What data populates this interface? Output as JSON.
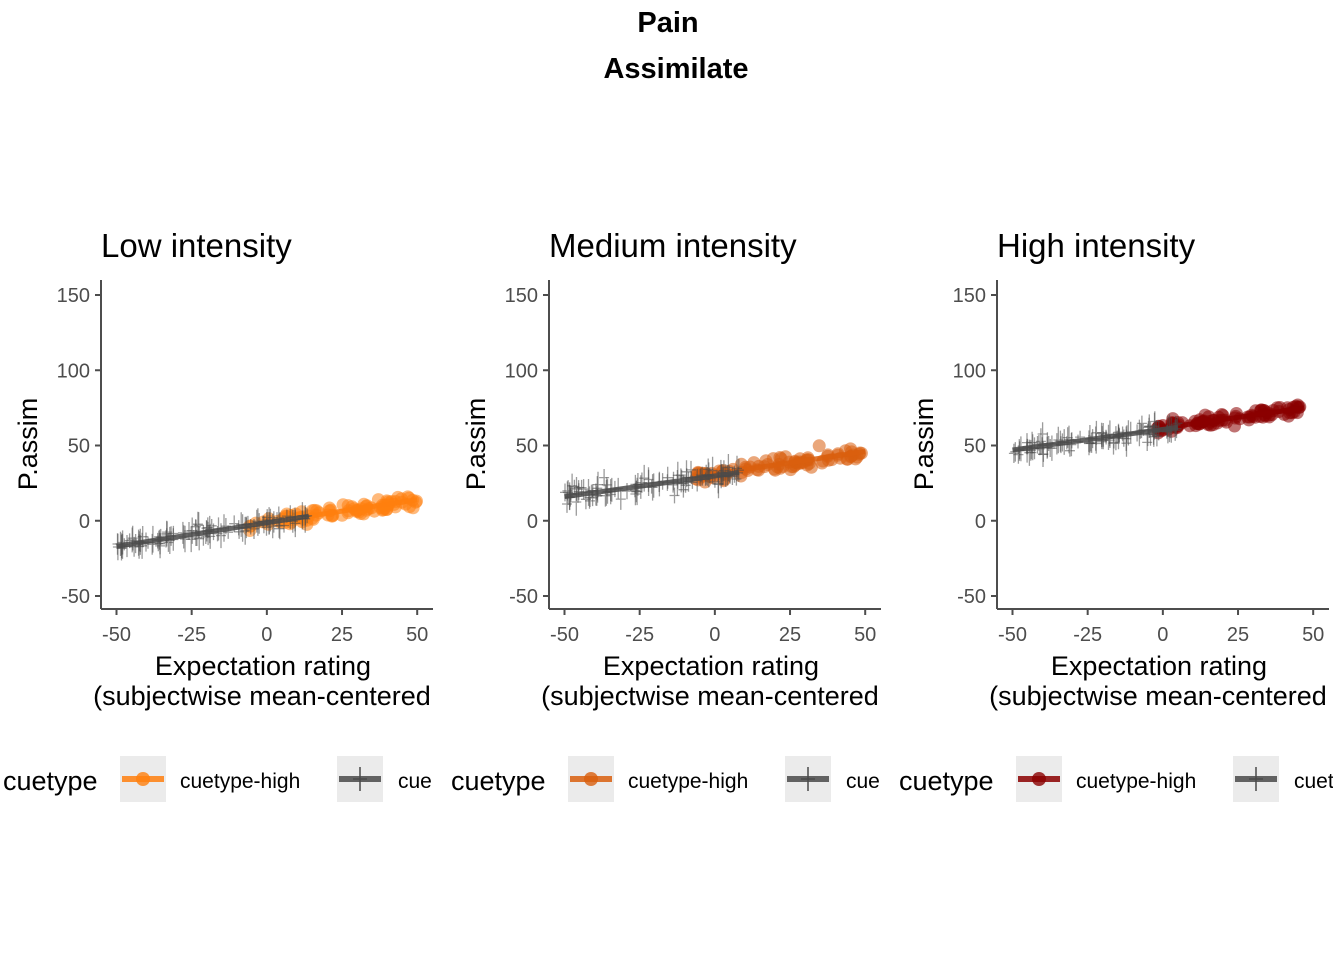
{
  "figure": {
    "title": "Pain",
    "subtitle": "Assimilate"
  },
  "chart_data": [
    {
      "type": "scatter",
      "title": "Low intensity",
      "xlabel": "Expectation rating\n(subjectwise mean-centered",
      "ylabel": "P.assim",
      "xlim": [
        -50,
        50
      ],
      "ylim": [
        -50,
        150
      ],
      "xticks": [
        -50,
        -25,
        0,
        25,
        50
      ],
      "yticks": [
        -50,
        0,
        50,
        100,
        150
      ],
      "grid": false,
      "legend": {
        "title": "cuetype",
        "position": "bottom",
        "entries": [
          "cuetype-high",
          "cue"
        ]
      },
      "series": [
        {
          "name": "cuetype-high",
          "color": "#ff7f0e",
          "marker": "circle",
          "x_range": [
            -6,
            50
          ],
          "fit": [
            [
              -6,
              -3
            ],
            [
              50,
              14
            ]
          ],
          "noise": 2.2,
          "n": 95
        },
        {
          "name": "cuetype-low",
          "color": "#4a4a4a",
          "marker": "plus",
          "x_range": [
            -50,
            14
          ],
          "fit": [
            [
              -50,
              -17
            ],
            [
              14,
              3
            ]
          ],
          "noise": 2.5,
          "n": 110
        }
      ]
    },
    {
      "type": "scatter",
      "title": "Medium intensity",
      "xlabel": "Expectation rating\n(subjectwise mean-centered",
      "ylabel": "P.assim",
      "xlim": [
        -50,
        50
      ],
      "ylim": [
        -50,
        150
      ],
      "xticks": [
        -50,
        -25,
        0,
        25,
        50
      ],
      "yticks": [
        -50,
        0,
        50,
        100,
        150
      ],
      "grid": false,
      "legend": {
        "title": "cuetype",
        "position": "bottom",
        "entries": [
          "cuetype-high",
          "cue"
        ]
      },
      "series": [
        {
          "name": "cuetype-high",
          "color": "#d95f0e",
          "marker": "circle",
          "x_range": [
            -7,
            50
          ],
          "fit": [
            [
              -7,
              29
            ],
            [
              50,
              46
            ]
          ],
          "noise": 2.2,
          "n": 95
        },
        {
          "name": "cuetype-low",
          "color": "#4a4a4a",
          "marker": "plus",
          "x_range": [
            -50,
            8
          ],
          "fit": [
            [
              -50,
              16
            ],
            [
              8,
              32
            ]
          ],
          "noise": 2.8,
          "n": 110
        }
      ]
    },
    {
      "type": "scatter",
      "title": "High intensity",
      "xlabel": "Expectation rating\n(subjectwise mean-centered",
      "ylabel": "P.assim",
      "xlim": [
        -50,
        50
      ],
      "ylim": [
        -50,
        150
      ],
      "xticks": [
        -50,
        -25,
        0,
        25,
        50
      ],
      "yticks": [
        -50,
        0,
        50,
        100,
        150
      ],
      "grid": false,
      "legend": {
        "title": "cuetype",
        "position": "bottom",
        "entries": [
          "cuetype-high",
          "cuety"
        ]
      },
      "series": [
        {
          "name": "cuetype-high",
          "color": "#8b0000",
          "marker": "circle",
          "x_range": [
            -2,
            47
          ],
          "fit": [
            [
              -2,
              61
            ],
            [
              47,
              75
            ]
          ],
          "noise": 1.8,
          "n": 95
        },
        {
          "name": "cuetype-low",
          "color": "#4a4a4a",
          "marker": "plus",
          "x_range": [
            -50,
            5
          ],
          "fit": [
            [
              -50,
              47
            ],
            [
              5,
              62
            ]
          ],
          "noise": 2.5,
          "n": 110
        }
      ]
    }
  ]
}
